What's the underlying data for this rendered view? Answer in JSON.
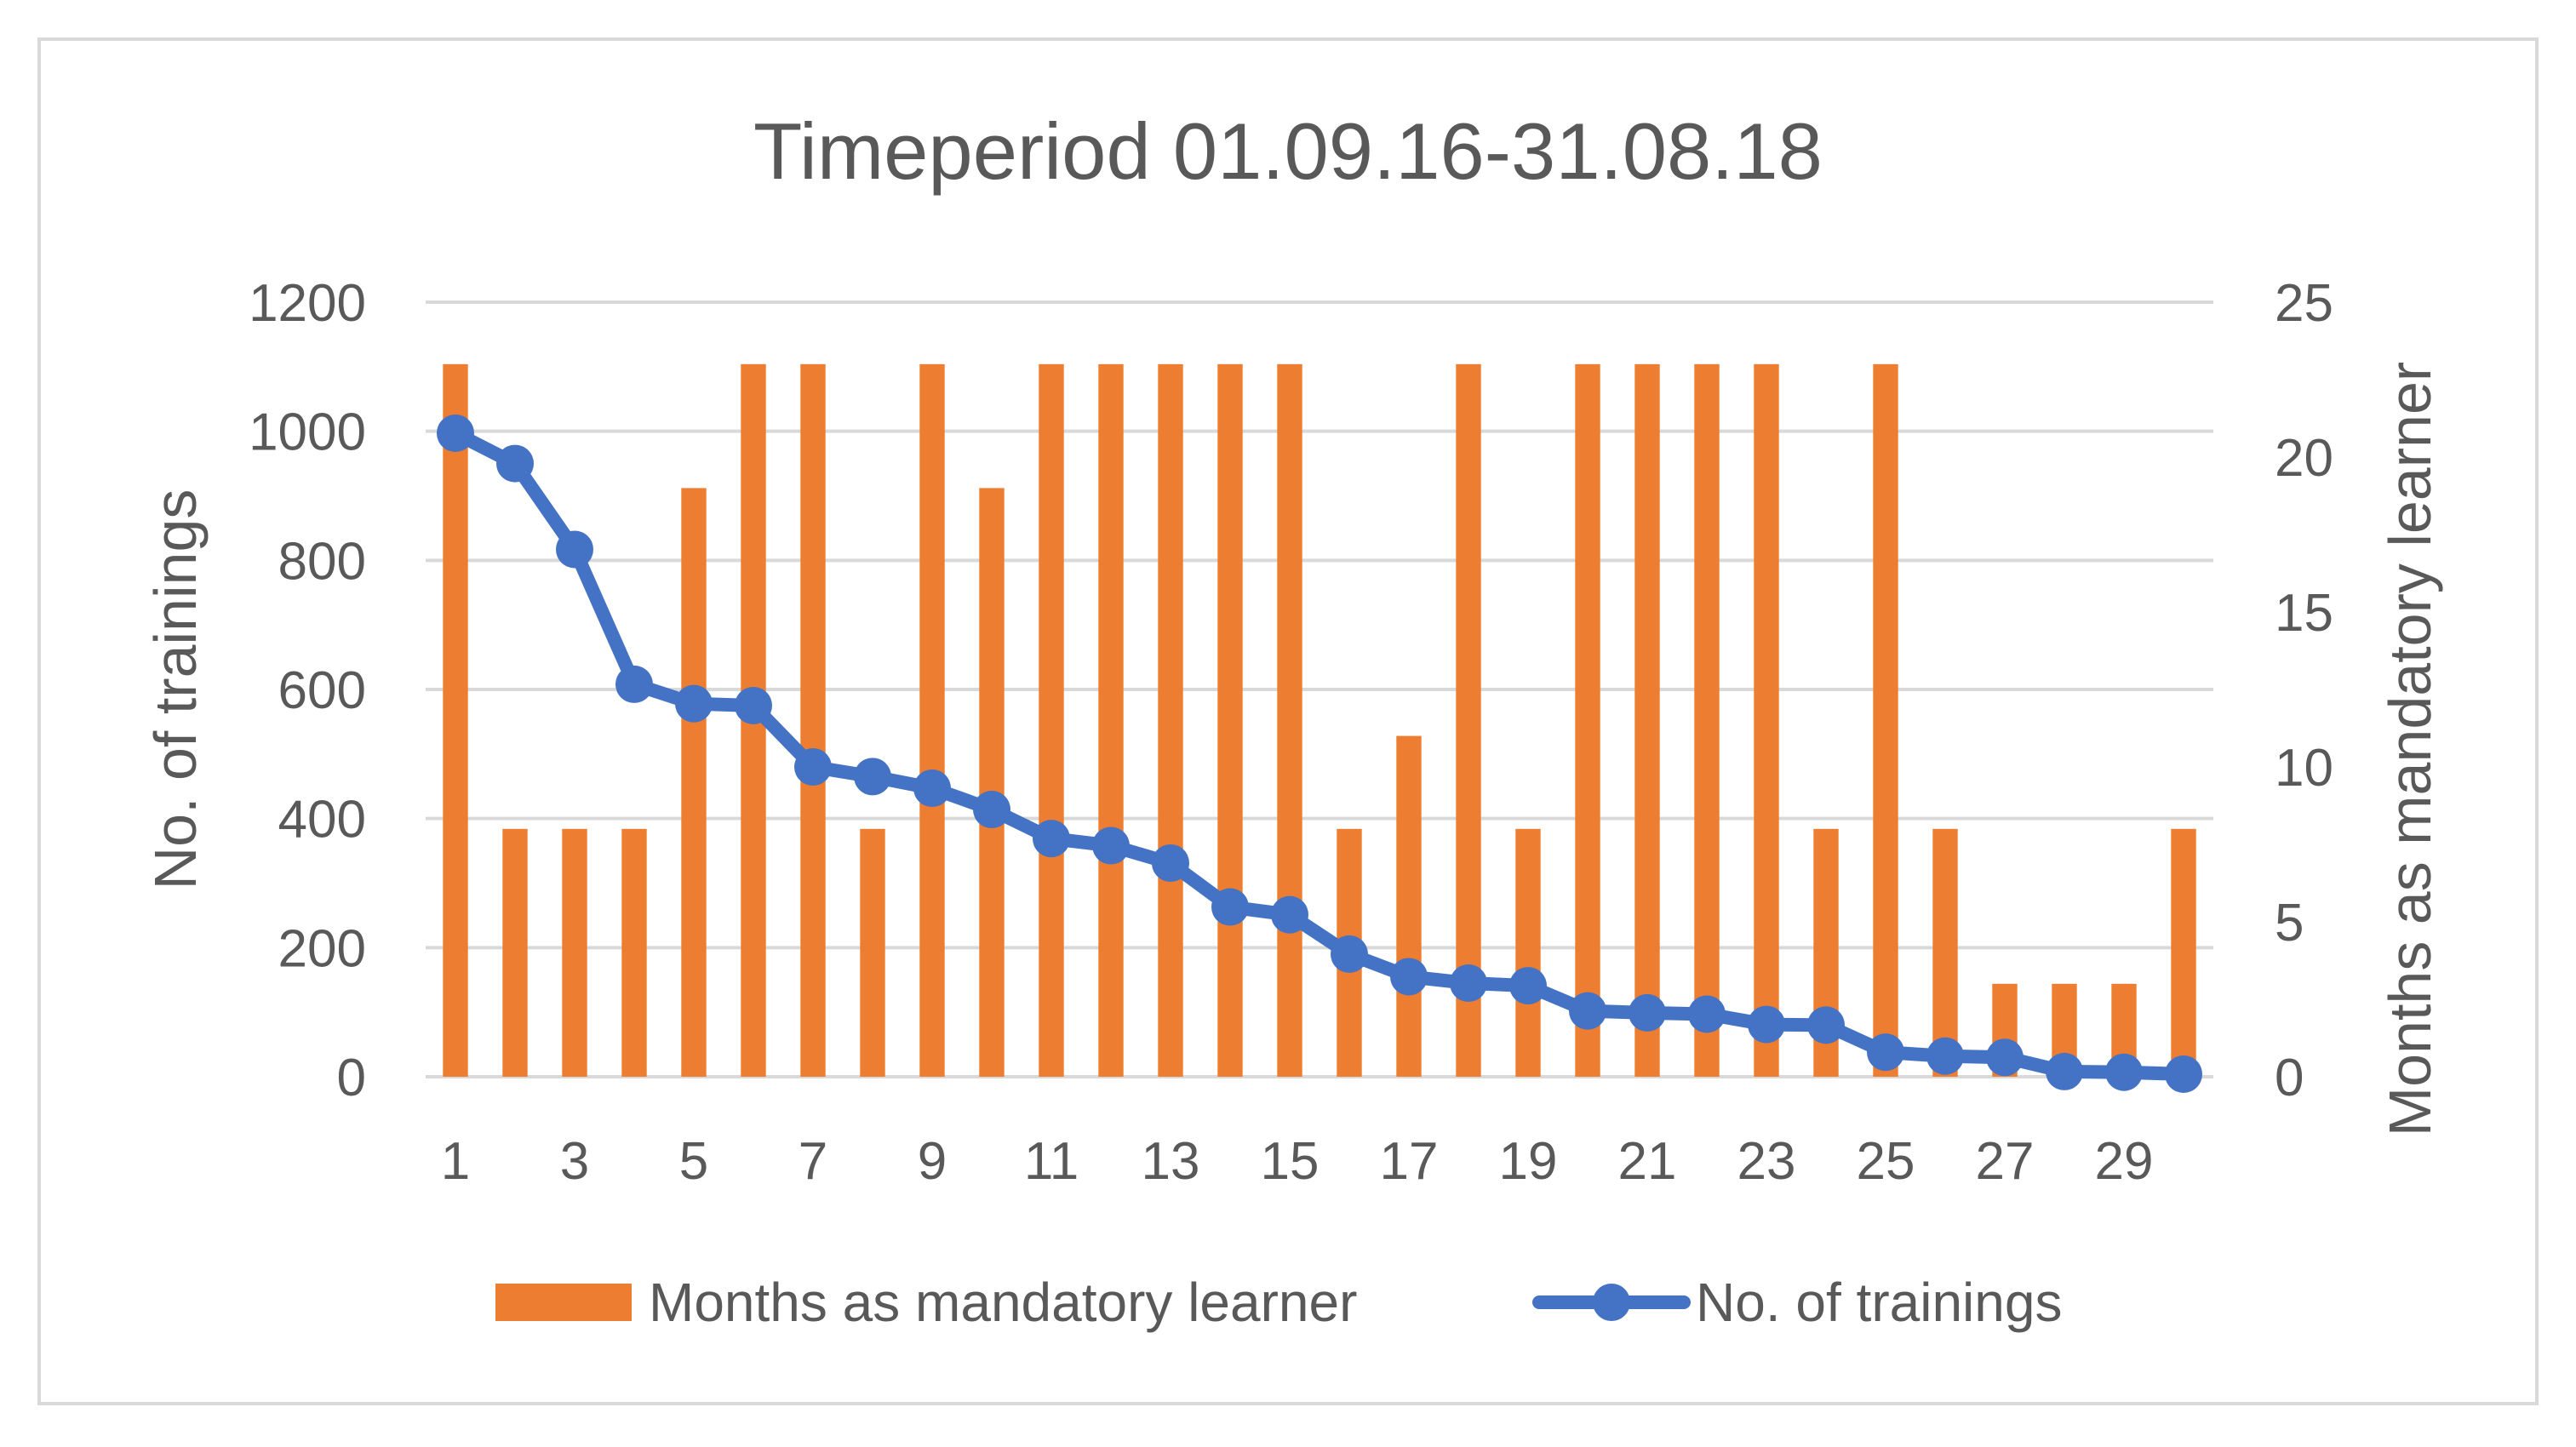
{
  "chart_data": {
    "type": "bar",
    "title": "Timeperiod 01.09.16-31.08.18",
    "x": [
      1,
      2,
      3,
      4,
      5,
      6,
      7,
      8,
      9,
      10,
      11,
      12,
      13,
      14,
      15,
      16,
      17,
      18,
      19,
      20,
      21,
      22,
      23,
      24,
      25,
      26,
      27,
      28,
      29,
      30
    ],
    "x_tick_labels": [
      "1",
      "3",
      "5",
      "7",
      "9",
      "11",
      "13",
      "15",
      "17",
      "19",
      "21",
      "23",
      "25",
      "27",
      "29"
    ],
    "y_left_label": "No. of trainings",
    "y_left_lim": [
      0,
      1200
    ],
    "y_left_ticks": [
      "0",
      "200",
      "400",
      "600",
      "800",
      "1000",
      "1200"
    ],
    "y_right_label": "Months as mandatory learner",
    "y_right_lim": [
      0,
      25
    ],
    "y_right_ticks": [
      "0",
      "5",
      "10",
      "15",
      "20",
      "25"
    ],
    "grid": "horizontal",
    "legend_position": "bottom",
    "series": [
      {
        "name": "Months as mandatory learner",
        "type": "bar",
        "axis": "right",
        "color": "#ED7D31",
        "values": [
          23,
          8,
          8,
          8,
          19,
          23,
          23,
          8,
          23,
          19,
          23,
          23,
          23,
          23,
          23,
          8,
          11,
          23,
          8,
          23,
          23,
          23,
          23,
          8,
          23,
          8,
          3,
          3,
          3,
          8
        ]
      },
      {
        "name": "No. of trainings",
        "type": "line",
        "axis": "left",
        "color": "#4472C4",
        "values": [
          997,
          950,
          817,
          608,
          578,
          575,
          480,
          465,
          447,
          414,
          369,
          358,
          331,
          263,
          251,
          190,
          155,
          145,
          141,
          102,
          99,
          97,
          81,
          80,
          38,
          32,
          30,
          8,
          7,
          4
        ]
      }
    ]
  }
}
